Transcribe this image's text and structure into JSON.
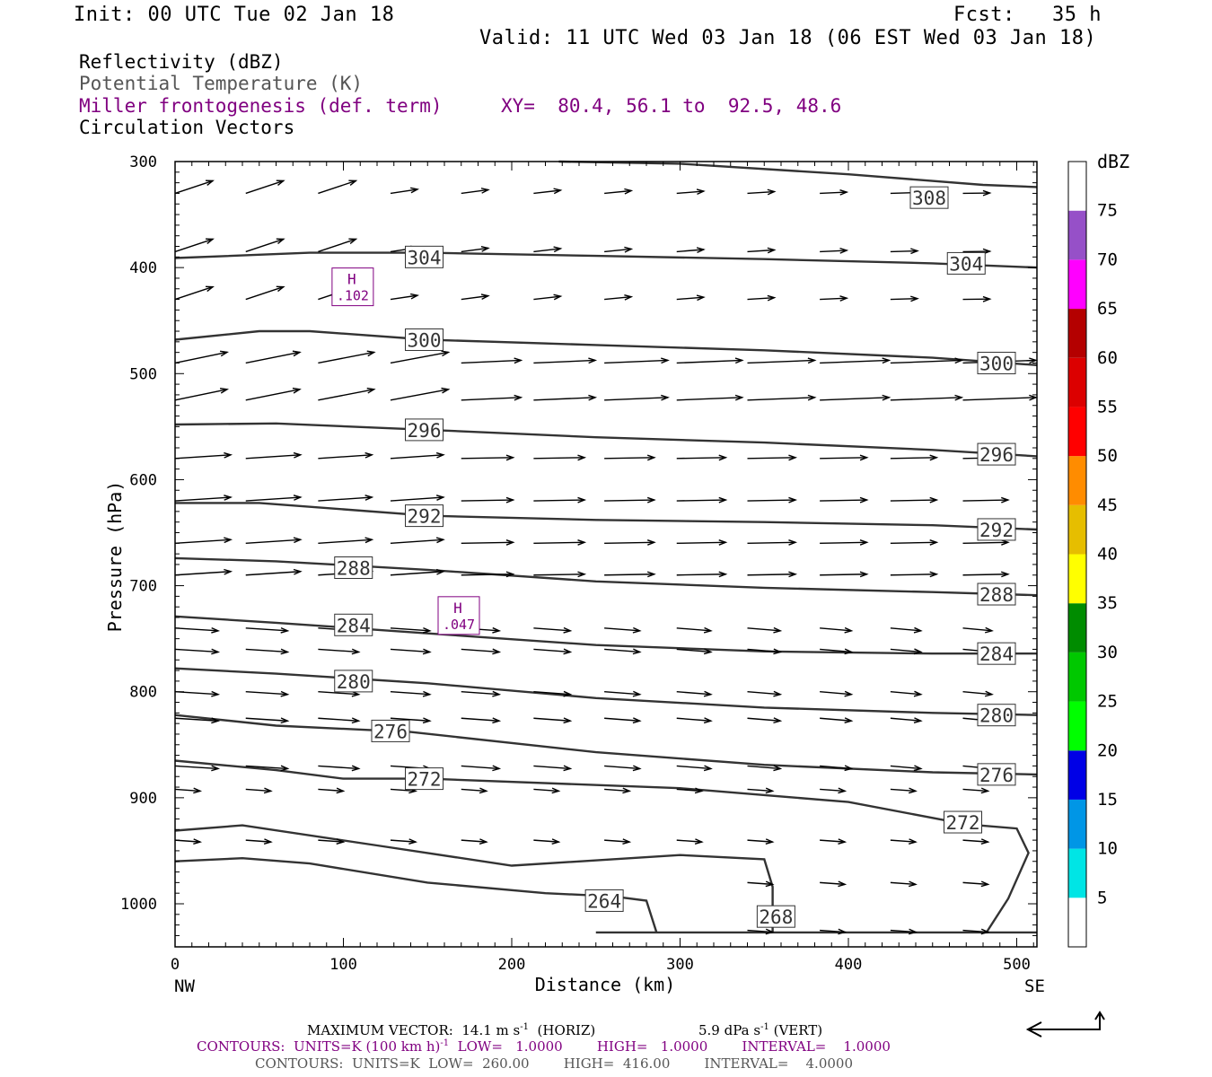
{
  "header": {
    "init": "Init: 00 UTC Tue 02 Jan 18",
    "fcst": "Fcst:   35 h",
    "valid": "Valid: 11 UTC Wed 03 Jan 18 (06 EST Wed 03 Jan 18)"
  },
  "legend": {
    "reflectivity": "Reflectivity (dBZ)",
    "theta": "Potential Temperature (K)",
    "miller": "Miller frontogenesis (def. term)",
    "xy": "XY=  80.4, 56.1 to  92.5, 48.6",
    "circulation": "Circulation Vectors"
  },
  "footer": {
    "max_vector": "MAXIMUM VECTOR:  14.1 m s",
    "max_vector_sup": "-1",
    "max_vector_horiz": "(HORIZ)",
    "vert_value": "5.9 dPa s",
    "vert_sup": "-1",
    "vert_label": "(VERT)",
    "contours1_a": "CONTOURS:  UNITS=K (100 km h)",
    "contours1_sup": "-1",
    "contours1_b": "  LOW=   1.0000        HIGH=   1.0000        INTERVAL=    1.0000",
    "contours2": "CONTOURS:  UNITS=K  LOW=  260.00        HIGH=  416.00        INTERVAL=    4.0000"
  },
  "chart_data": {
    "type": "cross-section",
    "xlabel": "Distance (km)",
    "ylabel": "Pressure (hPa)",
    "xlim": [
      0,
      512
    ],
    "ylim": [
      1030,
      300
    ],
    "x_ticks": [
      "0",
      "100",
      "200",
      "300",
      "400",
      "500"
    ],
    "y_ticks": [
      "300",
      "400",
      "500",
      "600",
      "700",
      "800",
      "900",
      "1000"
    ],
    "endpoints": {
      "left": "NW",
      "right": "SE"
    },
    "colorbar": {
      "title": "dBZ",
      "labels": [
        "5",
        "10",
        "15",
        "20",
        "25",
        "30",
        "35",
        "40",
        "45",
        "50",
        "55",
        "60",
        "65",
        "70",
        "75"
      ],
      "colors": [
        "#ffffff",
        "#00e5e5",
        "#0096e6",
        "#0000e6",
        "#00ff00",
        "#00c800",
        "#008c00",
        "#ffff00",
        "#e6be00",
        "#ff8c00",
        "#ff0000",
        "#dc0000",
        "#b40000",
        "#ff00ff",
        "#9650c8",
        "#ffffff"
      ]
    },
    "theta_contours": [
      {
        "label": "308",
        "points": [
          [
            228,
            300
          ],
          [
            300,
            302
          ],
          [
            400,
            312
          ],
          [
            480,
            322
          ],
          [
            512,
            324
          ]
        ],
        "label_at": [
          448,
          334
        ]
      },
      {
        "label": "304",
        "points": [
          [
            0,
            391
          ],
          [
            80,
            386
          ],
          [
            150,
            386
          ],
          [
            250,
            389
          ],
          [
            350,
            392
          ],
          [
            450,
            396
          ],
          [
            512,
            400
          ]
        ],
        "label_at": [
          148,
          390
        ],
        "label_at2": [
          470,
          396
        ]
      },
      {
        "label": "300",
        "points": [
          [
            0,
            468
          ],
          [
            50,
            460
          ],
          [
            80,
            460
          ],
          [
            150,
            468
          ],
          [
            250,
            473
          ],
          [
            350,
            478
          ],
          [
            450,
            485
          ],
          [
            512,
            492
          ]
        ],
        "label_at": [
          148,
          468
        ],
        "label_at2": [
          488,
          490
        ]
      },
      {
        "label": "296",
        "points": [
          [
            0,
            548
          ],
          [
            60,
            547
          ],
          [
            150,
            553
          ],
          [
            250,
            560
          ],
          [
            350,
            565
          ],
          [
            450,
            572
          ],
          [
            512,
            578
          ]
        ],
        "label_at": [
          148,
          553
        ],
        "label_at2": [
          488,
          576
        ]
      },
      {
        "label": "292",
        "points": [
          [
            0,
            622
          ],
          [
            50,
            622
          ],
          [
            150,
            634
          ],
          [
            250,
            638
          ],
          [
            350,
            640
          ],
          [
            450,
            643
          ],
          [
            512,
            647
          ]
        ],
        "label_at": [
          148,
          634
        ],
        "label_at2": [
          488,
          647
        ]
      },
      {
        "label": "288",
        "points": [
          [
            0,
            674
          ],
          [
            60,
            677
          ],
          [
            150,
            685
          ],
          [
            250,
            696
          ],
          [
            350,
            702
          ],
          [
            450,
            706
          ],
          [
            512,
            709
          ]
        ],
        "label_at": [
          106,
          683
        ],
        "label_at2": [
          488,
          708
        ]
      },
      {
        "label": "284",
        "points": [
          [
            0,
            729
          ],
          [
            60,
            735
          ],
          [
            150,
            745
          ],
          [
            250,
            756
          ],
          [
            350,
            762
          ],
          [
            450,
            764
          ],
          [
            512,
            764
          ]
        ],
        "label_at": [
          106,
          737
        ],
        "label_at2": [
          488,
          764
        ]
      },
      {
        "label": "280",
        "points": [
          [
            0,
            778
          ],
          [
            60,
            783
          ],
          [
            150,
            792
          ],
          [
            250,
            806
          ],
          [
            350,
            815
          ],
          [
            450,
            820
          ],
          [
            512,
            822
          ]
        ],
        "label_at": [
          106,
          790
        ],
        "label_at2": [
          488,
          822
        ]
      },
      {
        "label": "276",
        "points": [
          [
            0,
            822
          ],
          [
            60,
            832
          ],
          [
            140,
            838
          ],
          [
            250,
            857
          ],
          [
            350,
            869
          ],
          [
            450,
            876
          ],
          [
            512,
            878
          ]
        ],
        "label_at": [
          128,
          837
        ],
        "label_at2": [
          488,
          878
        ]
      },
      {
        "label": "272",
        "points": [
          [
            0,
            865
          ],
          [
            60,
            874
          ],
          [
            100,
            882
          ],
          [
            150,
            882
          ],
          [
            300,
            891
          ],
          [
            400,
            904
          ],
          [
            470,
            925
          ],
          [
            500,
            929
          ],
          [
            507,
            952
          ],
          [
            495,
            995
          ],
          [
            482,
            1027
          ]
        ],
        "label_at": [
          148,
          882
        ],
        "label_at2": [
          468,
          923
        ]
      },
      {
        "label": "268",
        "points": [
          [
            0,
            931
          ],
          [
            40,
            926
          ],
          [
            120,
            945
          ],
          [
            200,
            964
          ],
          [
            300,
            954
          ],
          [
            350,
            958
          ],
          [
            355,
            984
          ],
          [
            355,
            1027
          ]
        ],
        "label_at": [
          357,
          1012
        ]
      },
      {
        "label": "264",
        "points": [
          [
            0,
            960
          ],
          [
            40,
            957
          ],
          [
            80,
            962
          ],
          [
            150,
            980
          ],
          [
            220,
            990
          ],
          [
            260,
            993
          ],
          [
            280,
            997
          ],
          [
            286,
            1027
          ]
        ],
        "label_at": [
          255,
          997
        ]
      }
    ],
    "frontogenesis_maxima": [
      {
        "label": "H",
        "value": ".102",
        "x": 105,
        "p": 419
      },
      {
        "label": "H",
        "value": ".047",
        "x": 168,
        "p": 729
      }
    ]
  }
}
